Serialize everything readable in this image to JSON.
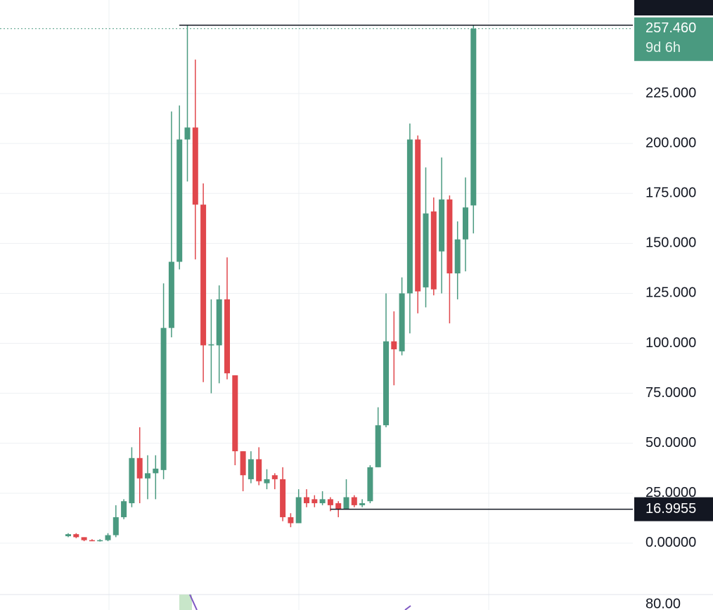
{
  "chart_data": {
    "type": "candlestick",
    "categories": [
      null,
      null,
      null,
      null,
      null,
      null,
      null,
      null,
      null,
      null,
      null,
      null,
      null,
      null,
      null,
      null,
      null,
      null,
      null,
      null,
      null,
      null,
      null,
      null,
      null,
      null,
      null,
      null,
      null,
      null,
      null,
      null,
      null,
      null,
      null,
      null,
      null,
      null,
      null,
      null,
      null,
      null,
      null,
      null,
      null,
      null,
      null,
      null,
      null,
      null,
      null,
      null
    ],
    "open": [
      3.5,
      4.5,
      3,
      1.5,
      1.2,
      1.5,
      4,
      13,
      20,
      42.6,
      32.4,
      35,
      36.6,
      107.7,
      140.8,
      202,
      208,
      169.4,
      99,
      99,
      122,
      84,
      46,
      32,
      42,
      30,
      34,
      32,
      13,
      10,
      23,
      22,
      20,
      22,
      20,
      17,
      23,
      19,
      21,
      38,
      59,
      101,
      96,
      125,
      202,
      128,
      166,
      146,
      172,
      135,
      152,
      169
    ],
    "high": [
      5,
      5,
      3,
      2,
      2,
      5,
      19,
      22,
      48,
      58,
      44,
      44,
      130,
      216,
      219,
      259,
      242,
      180,
      122,
      129,
      143,
      84,
      46,
      46,
      48,
      37,
      35,
      38,
      15,
      27,
      27,
      24,
      26,
      23,
      21,
      32,
      24,
      22,
      39,
      68,
      125,
      116,
      133,
      210,
      204,
      188,
      173,
      193,
      174,
      161,
      183,
      259.2
    ],
    "low": [
      3,
      2.5,
      1,
      1,
      0.8,
      1,
      3,
      12,
      18,
      20,
      22,
      22,
      32,
      103,
      137,
      181,
      142,
      80.6,
      75,
      80,
      82,
      39,
      26,
      30,
      29,
      27,
      27,
      11,
      8,
      10,
      18,
      18,
      19,
      16,
      13,
      17,
      18,
      18,
      20,
      38,
      58,
      79,
      94,
      105,
      115,
      118,
      124,
      125,
      110,
      122,
      136,
      155
    ],
    "close": [
      4.5,
      3,
      1.5,
      1.2,
      1.5,
      4,
      13,
      21,
      42.6,
      32.4,
      35,
      37.3,
      107.7,
      140.8,
      202,
      208,
      169.4,
      99,
      99.5,
      122,
      85,
      46,
      34,
      42,
      31,
      32,
      32,
      13,
      10,
      23,
      20,
      20,
      22,
      19,
      17,
      23,
      19,
      20,
      38,
      59,
      101,
      97,
      125,
      202,
      126,
      165,
      127,
      172,
      135,
      152,
      168,
      257.46
    ],
    "up_color": "#4a9a80",
    "down_color": "#e0474c",
    "ylim": [
      -25.7,
      271.8
    ],
    "yticks": [
      {
        "value": 0,
        "label": "0.00000"
      },
      {
        "value": 25,
        "label": "25.0000"
      },
      {
        "value": 50,
        "label": "50.0000"
      },
      {
        "value": 75,
        "label": "75.0000"
      },
      {
        "value": 100,
        "label": "100.000"
      },
      {
        "value": 125,
        "label": "125.000"
      },
      {
        "value": 150,
        "label": "150.000"
      },
      {
        "value": 175,
        "label": "175.000"
      },
      {
        "value": 200,
        "label": "200.000"
      },
      {
        "value": 225,
        "label": "225.000"
      }
    ],
    "grid": true,
    "last_price": {
      "value": 257.46,
      "label": "257.460",
      "countdown": "9d 6h"
    },
    "low_line": {
      "value": 16.9955,
      "label": "16.9955"
    },
    "high_line": 259.2
  },
  "indicator_pane": {
    "tick_label": "80.00"
  }
}
